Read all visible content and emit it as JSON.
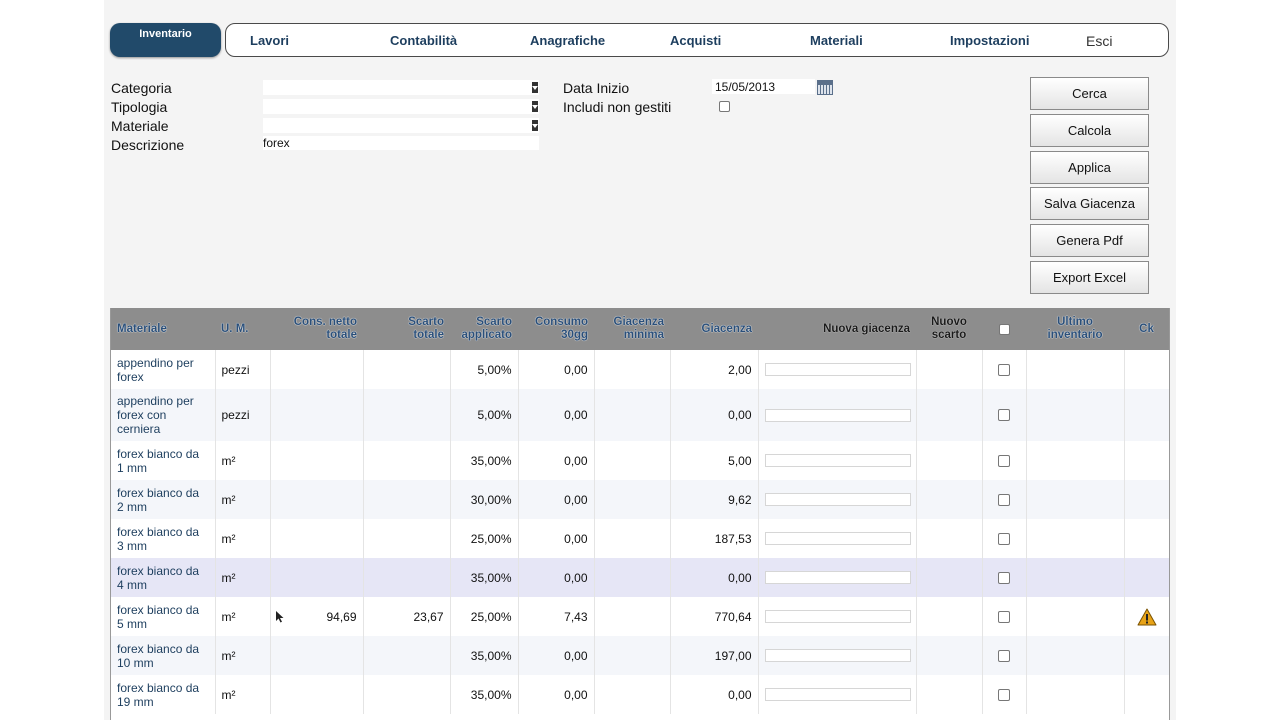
{
  "nav": {
    "active": "Inventario",
    "items": [
      "Lavori",
      "Contabilità",
      "Anagrafiche",
      "Acquisti",
      "Materiali",
      "Impostazioni"
    ],
    "exit": "Esci"
  },
  "form": {
    "categoria_label": "Categoria",
    "tipologia_label": "Tipologia",
    "materiale_label": "Materiale",
    "descrizione_label": "Descrizione",
    "descrizione_value": "forex",
    "data_inizio_label": "Data Inizio",
    "data_inizio_value": "15/05/2013",
    "includi_label": "Includi non gestiti"
  },
  "buttons": {
    "cerca": "Cerca",
    "calcola": "Calcola",
    "applica": "Applica",
    "salva": "Salva Giacenza",
    "pdf": "Genera Pdf",
    "excel": "Export Excel"
  },
  "table": {
    "headers": {
      "materiale": "Materiale",
      "um": "U. M.",
      "cons_netto_1": "Cons. netto",
      "cons_netto_2": "totale",
      "scarto_totale_1": "Scarto",
      "scarto_totale_2": "totale",
      "scarto_applicato_1": "Scarto",
      "scarto_applicato_2": "applicato",
      "consumo_1": "Consumo",
      "consumo_2": "30gg",
      "giacenza_min_1": "Giacenza",
      "giacenza_min_2": "minima",
      "giacenza": "Giacenza",
      "nuova_giacenza": "Nuova giacenza",
      "nuovo_scarto_1": "Nuovo",
      "nuovo_scarto_2": "scarto",
      "ultimo_1": "Ultimo",
      "ultimo_2": "inventario",
      "ck": "Ck"
    },
    "rows": [
      {
        "materiale": "appendino per forex",
        "um": "pezzi",
        "cons": "",
        "scarto_tot": "",
        "scarto_app": "5,00%",
        "consumo": "0,00",
        "giac_min": "",
        "giacenza": "2,00",
        "warn": false
      },
      {
        "materiale": "appendino per forex con cerniera",
        "um": "pezzi",
        "cons": "",
        "scarto_tot": "",
        "scarto_app": "5,00%",
        "consumo": "0,00",
        "giac_min": "",
        "giacenza": "0,00",
        "warn": false
      },
      {
        "materiale": "forex bianco da 1 mm",
        "um": "m²",
        "cons": "",
        "scarto_tot": "",
        "scarto_app": "35,00%",
        "consumo": "0,00",
        "giac_min": "",
        "giacenza": "5,00",
        "warn": false
      },
      {
        "materiale": "forex bianco da 2 mm",
        "um": "m²",
        "cons": "",
        "scarto_tot": "",
        "scarto_app": "30,00%",
        "consumo": "0,00",
        "giac_min": "",
        "giacenza": "9,62",
        "warn": false
      },
      {
        "materiale": "forex bianco da 3 mm",
        "um": "m²",
        "cons": "",
        "scarto_tot": "",
        "scarto_app": "25,00%",
        "consumo": "0,00",
        "giac_min": "",
        "giacenza": "187,53",
        "warn": false
      },
      {
        "materiale": "forex bianco da 4 mm",
        "um": "m²",
        "cons": "",
        "scarto_tot": "",
        "scarto_app": "35,00%",
        "consumo": "0,00",
        "giac_min": "",
        "giacenza": "0,00",
        "warn": false
      },
      {
        "materiale": "forex bianco da 5 mm",
        "um": "m²",
        "cons": "94,69",
        "scarto_tot": "23,67",
        "scarto_app": "25,00%",
        "consumo": "7,43",
        "giac_min": "",
        "giacenza": "770,64",
        "warn": true
      },
      {
        "materiale": "forex bianco da 10 mm",
        "um": "m²",
        "cons": "",
        "scarto_tot": "",
        "scarto_app": "35,00%",
        "consumo": "0,00",
        "giac_min": "",
        "giacenza": "197,00",
        "warn": false
      },
      {
        "materiale": "forex bianco da 19 mm",
        "um": "m²",
        "cons": "",
        "scarto_tot": "",
        "scarto_app": "35,00%",
        "consumo": "0,00",
        "giac_min": "",
        "giacenza": "0,00",
        "warn": false
      }
    ]
  },
  "colors": {
    "nav_active_bg": "#214a6a",
    "nav_text": "#1d3e5e",
    "header_bg": "#8d8d8d",
    "warning": "#e8a317"
  },
  "icons": {
    "calendar": "calendar-icon",
    "warning": "warning-icon",
    "cursor": "mouse-cursor-icon"
  }
}
